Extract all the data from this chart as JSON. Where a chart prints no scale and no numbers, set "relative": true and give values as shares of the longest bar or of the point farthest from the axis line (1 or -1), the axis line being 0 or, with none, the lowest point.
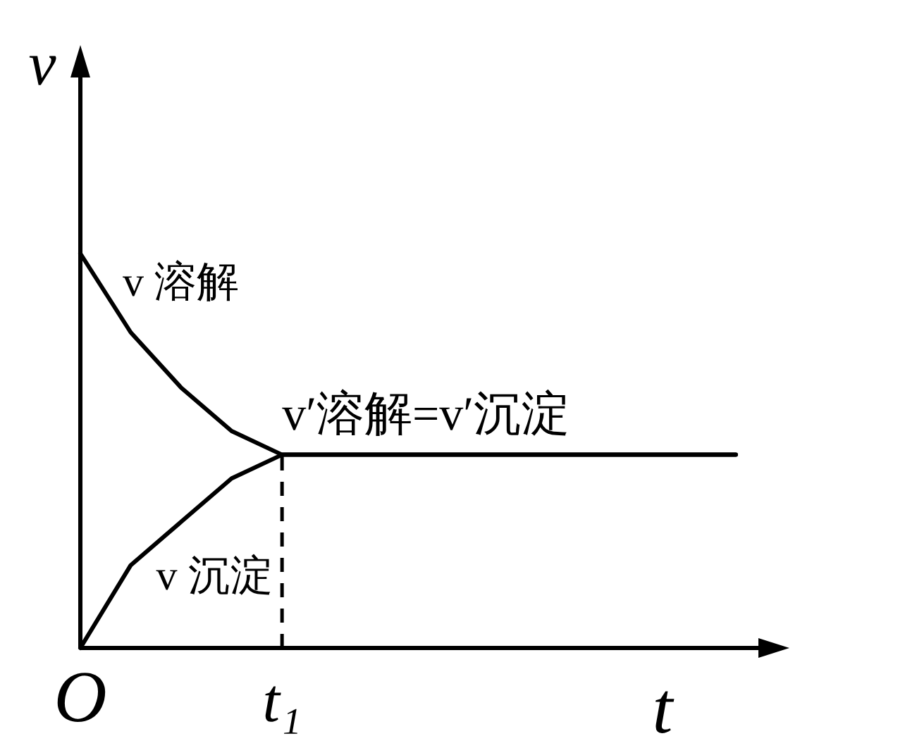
{
  "chart_data": {
    "type": "line",
    "relative": true,
    "xlabel": "t",
    "ylabel": "v",
    "categories": [
      "O",
      null,
      null,
      null,
      "t₁",
      null,
      null,
      null,
      null,
      null,
      null,
      null,
      null,
      null
    ],
    "series": [
      {
        "name": "v 溶解",
        "color": "#000000",
        "values": [
          1,
          0.8,
          0.66,
          0.55,
          0.49,
          0.49,
          0.49,
          0.49,
          0.49,
          0.49,
          0.49,
          0.49,
          0.49,
          0.49
        ]
      },
      {
        "name": "v 沉淀",
        "color": "#000000",
        "values": [
          0,
          0.21,
          0.32,
          0.43,
          0.49,
          0.49,
          0.49,
          0.49,
          0.49,
          0.49,
          0.49,
          0.49,
          0.49,
          0.49
        ]
      }
    ],
    "ref_lines": [
      {
        "axis": "x",
        "value": "t₁",
        "label": null,
        "color": "#000000",
        "line_style": "dashed"
      }
    ],
    "annotations": [
      {
        "text": "v′溶解=v′沉淀",
        "x": "t₁",
        "y": 0.49
      }
    ]
  }
}
